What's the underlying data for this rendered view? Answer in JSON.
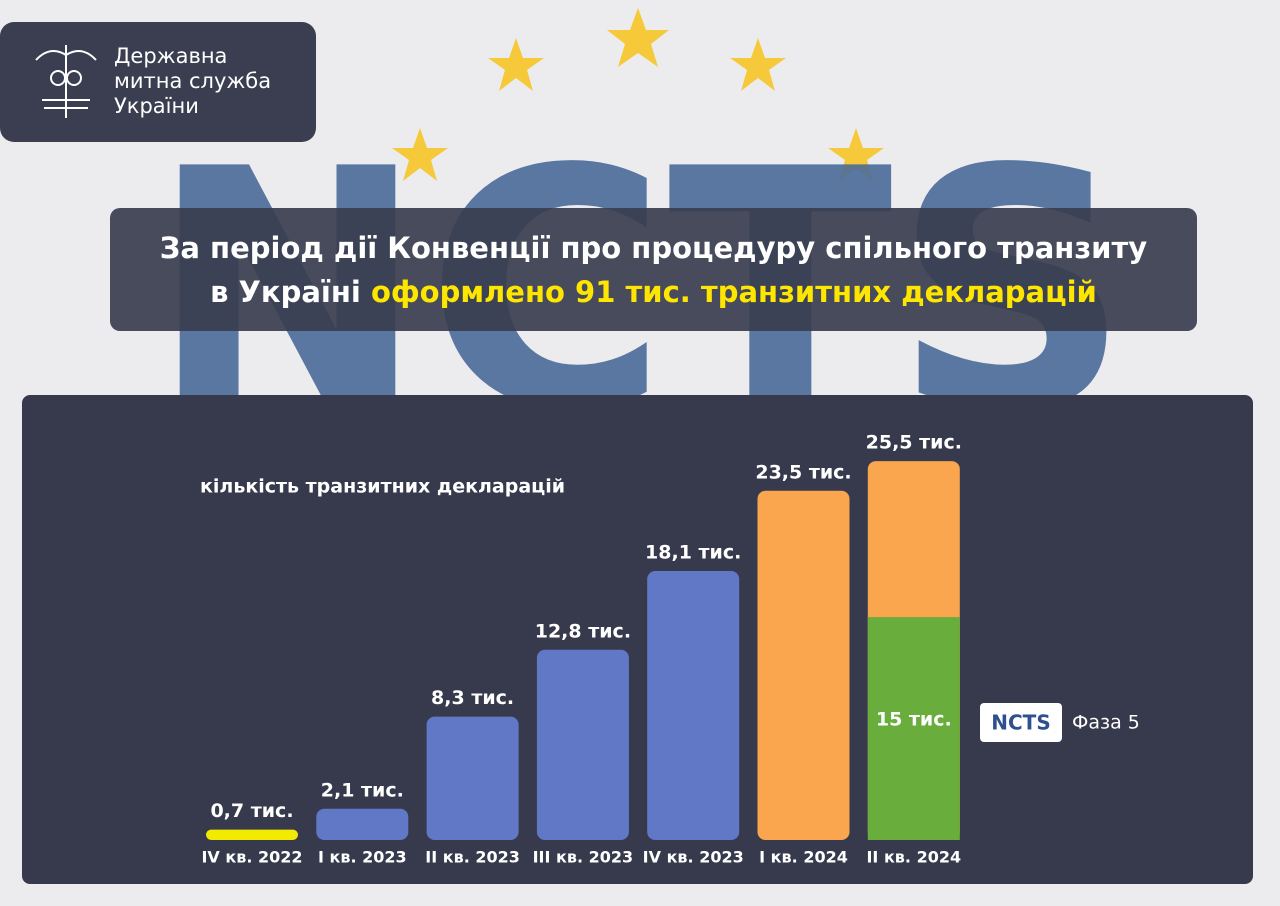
{
  "header": {
    "org_lines": [
      "Державна",
      "митна служба",
      "України"
    ]
  },
  "background_text": "NCTS",
  "headline": {
    "lines": [
      "За період дії Конвенції про процедуру спільного транзиту",
      "в Україні"
    ],
    "highlight": "оформлено 91 тис. транзитних декларацій"
  },
  "chart_data": {
    "type": "bar",
    "subtitle": "кількість транзитних декларацій",
    "categories": [
      "IV кв. 2022",
      "I кв. 2023",
      "II кв. 2023",
      "III кв. 2023",
      "IV кв. 2023",
      "I кв. 2024",
      "II кв. 2024"
    ],
    "values": [
      0.7,
      2.1,
      8.3,
      12.8,
      18.1,
      23.5,
      25.5
    ],
    "value_labels": [
      "0,7 тис.",
      "2,1 тис.",
      "8,3 тис.",
      "12,8 тис.",
      "18,1 тис.",
      "23,5 тис.",
      "25,5 тис."
    ],
    "colors": [
      "#f2ea00",
      "#6178c6",
      "#6178c6",
      "#6178c6",
      "#6178c6",
      "#f9a64f",
      "#f9a64f"
    ],
    "subset": {
      "name": "Фаза 5",
      "logo": "NCTS",
      "color": "#69ad3d",
      "values": [
        null,
        null,
        null,
        null,
        null,
        null,
        15
      ],
      "value_labels": [
        null,
        null,
        null,
        null,
        null,
        null,
        "15 тис."
      ]
    }
  }
}
